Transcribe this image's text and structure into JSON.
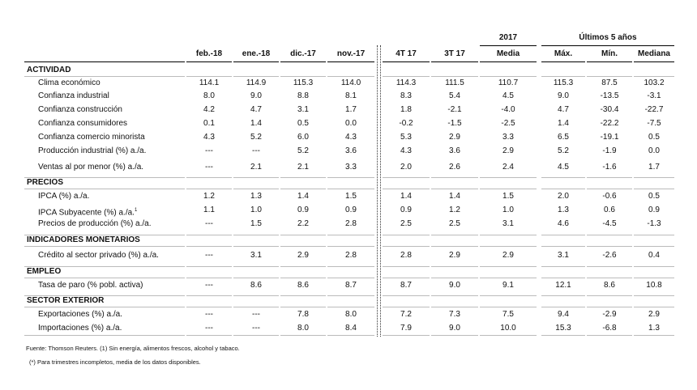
{
  "table": {
    "group_headers": {
      "year": "2017",
      "last5": "Últimos 5 años"
    },
    "columns": [
      "feb.-18",
      "ene.-18",
      "dic.-17",
      "nov.-17",
      "4T 17",
      "3T 17",
      "Media",
      "Máx.",
      "Mín.",
      "Mediana"
    ],
    "sections": [
      {
        "title": "ACTIVIDAD",
        "rows": [
          {
            "label": "Clima económico",
            "values": [
              "114.1",
              "114.9",
              "115.3",
              "114.0",
              "114.3",
              "111.5",
              "110.7",
              "115.3",
              "87.5",
              "103.2"
            ]
          },
          {
            "label": "Confianza industrial",
            "values": [
              "8.0",
              "9.0",
              "8.8",
              "8.1",
              "8.3",
              "5.4",
              "4.5",
              "9.0",
              "-13.5",
              "-3.1"
            ]
          },
          {
            "label": "Confianza construcción",
            "values": [
              "4.2",
              "4.7",
              "3.1",
              "1.7",
              "1.8",
              "-2.1",
              "-4.0",
              "4.7",
              "-30.4",
              "-22.7"
            ]
          },
          {
            "label": "Confianza consumidores",
            "values": [
              "0.1",
              "1.4",
              "0.5",
              "0.0",
              "-0.2",
              "-1.5",
              "-2.5",
              "1.4",
              "-22.2",
              "-7.5"
            ]
          },
          {
            "label": "Confianza comercio minorista",
            "values": [
              "4.3",
              "5.2",
              "6.0",
              "4.3",
              "5.3",
              "2.9",
              "3.3",
              "6.5",
              "-19.1",
              "0.5"
            ]
          },
          {
            "label": "Producción industrial (%) a./a.",
            "values": [
              "---",
              "---",
              "5.2",
              "3.6",
              "4.3",
              "3.6",
              "2.9",
              "5.2",
              "-1.9",
              "0.0"
            ]
          },
          {
            "label": "Ventas al por menor (%) a./a.",
            "values": [
              "---",
              "2.1",
              "2.1",
              "3.3",
              "2.0",
              "2.6",
              "2.4",
              "4.5",
              "-1.6",
              "1.7"
            ]
          }
        ]
      },
      {
        "title": "PRECIOS",
        "rows": [
          {
            "label": "IPCA (%) a./a.",
            "values": [
              "1.2",
              "1.3",
              "1.4",
              "1.5",
              "1.4",
              "1.4",
              "1.5",
              "2.0",
              "-0.6",
              "0.5"
            ]
          },
          {
            "label": "IPCA Subyacente (%) a./a.",
            "note": "1",
            "values": [
              "1.1",
              "1.0",
              "0.9",
              "0.9",
              "0.9",
              "1.2",
              "1.0",
              "1.3",
              "0.6",
              "0.9"
            ]
          },
          {
            "label": "Precios de producción (%) a./a.",
            "values": [
              "---",
              "1.5",
              "2.2",
              "2.8",
              "2.5",
              "2.5",
              "3.1",
              "4.6",
              "-4.5",
              "-1.3"
            ]
          }
        ]
      },
      {
        "title": "INDICADORES MONETARIOS",
        "rows": [
          {
            "label": "Crédito al sector privado  (%) a./a.",
            "values": [
              "---",
              "3.1",
              "2.9",
              "2.8",
              "2.8",
              "2.9",
              "2.9",
              "3.1",
              "-2.6",
              "0.4"
            ]
          }
        ]
      },
      {
        "title": "EMPLEO",
        "rows": [
          {
            "label": "Tasa de paro (% pobl. activa)",
            "values": [
              "---",
              "8.6",
              "8.6",
              "8.7",
              "8.7",
              "9.0",
              "9.1",
              "12.1",
              "8.6",
              "10.8"
            ]
          }
        ]
      },
      {
        "title": "SECTOR EXTERIOR",
        "rows": [
          {
            "label": "Exportaciones (%) a./a.",
            "values": [
              "---",
              "---",
              "7.8",
              "8.0",
              "7.2",
              "7.3",
              "7.5",
              "9.4",
              "-2.9",
              "2.9"
            ]
          },
          {
            "label": "Importaciones (%) a./a.",
            "values": [
              "---",
              "---",
              "8.0",
              "8.4",
              "7.9",
              "9.0",
              "10.0",
              "15.3",
              "-6.8",
              "1.3"
            ]
          }
        ]
      }
    ]
  },
  "footnotes": [
    "Fuente: Thomson Reuters.   (1) Sin energía, alimentos frescos, alcohol y tabaco.",
    "(*) Para trimestres incompletos, media de los datos disponibles."
  ]
}
